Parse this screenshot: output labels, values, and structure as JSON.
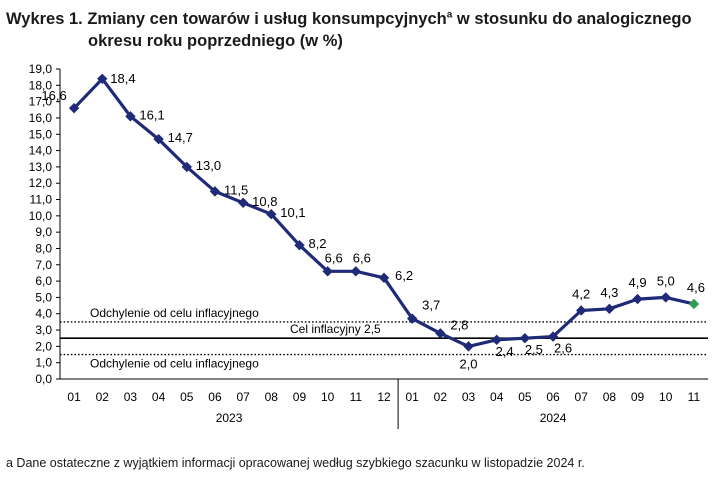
{
  "title": {
    "line1": "Wykres 1. Zmiany cen towarów i usług konsumpcyjnych",
    "superscript": "a",
    "line1_rest": " w stosunku do analogicznego",
    "line2": "okresu roku poprzedniego (w %)"
  },
  "footnote": "a Dane ostateczne z wyjątkiem informacji opracowanej według szybkiego szacunku w listopadzie 2024 r.",
  "colors": {
    "series": "#1f2a78",
    "last_marker": "#2e9b4e",
    "axis": "#000000",
    "reference": "#000000"
  },
  "chart_data": {
    "type": "line",
    "ylim": [
      0,
      19
    ],
    "yticks": [
      "0,0",
      "1,0",
      "2,0",
      "3,0",
      "4,0",
      "5,0",
      "6,0",
      "7,0",
      "8,0",
      "9,0",
      "10,0",
      "11,0",
      "12,0",
      "13,0",
      "14,0",
      "15,0",
      "16,0",
      "17,0",
      "18,0",
      "19,0"
    ],
    "categories": [
      "01",
      "02",
      "03",
      "04",
      "05",
      "06",
      "07",
      "08",
      "09",
      "10",
      "11",
      "12",
      "01",
      "02",
      "03",
      "04",
      "05",
      "06",
      "07",
      "08",
      "09",
      "10",
      "11"
    ],
    "year_groups": [
      {
        "label": "2023",
        "start": 0,
        "end": 11
      },
      {
        "label": "2024",
        "start": 12,
        "end": 22
      }
    ],
    "series": [
      {
        "values": [
          16.6,
          18.4,
          16.1,
          14.7,
          13.0,
          11.5,
          10.8,
          10.1,
          8.2,
          6.6,
          6.6,
          6.2,
          3.7,
          2.8,
          2.0,
          2.4,
          2.5,
          2.6,
          4.2,
          4.3,
          4.9,
          5.0,
          4.6
        ],
        "labels": [
          "16,6",
          "18,4",
          "16,1",
          "14,7",
          "13,0",
          "11,5",
          "10,8",
          "10,1",
          "8,2",
          "6,6",
          "6,6",
          "6,2",
          "3,7",
          "2,8",
          "2,0",
          "2,4",
          "2,5",
          "2,6",
          "4,2",
          "4,3",
          "4,9",
          "5,0",
          "4,6"
        ]
      }
    ],
    "reference_lines": [
      {
        "value": 3.5,
        "style": "dotted",
        "label": "Odchylenie od celu inflacyjnego"
      },
      {
        "value": 2.5,
        "style": "solid",
        "label": "Cel inflacyjny 2,5"
      },
      {
        "value": 1.5,
        "style": "dotted",
        "label": "Odchylenie od celu inflacyjnego"
      }
    ]
  }
}
